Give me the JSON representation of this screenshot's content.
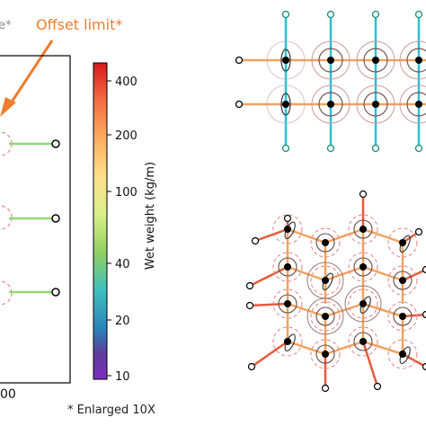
{
  "annotations": {
    "partial_label": "e*",
    "offset_limit": "Offset limit*",
    "enlarged_note": "* Enlarged 10X",
    "x_tick_partial": "00"
  },
  "colorbar": {
    "label": "Wet weight (kg/m)",
    "ticks": [
      "400",
      "200",
      "100",
      "40",
      "20",
      "10"
    ],
    "gradient": [
      "#d7191c",
      "#f46d43",
      "#fdae61",
      "#fee08b",
      "#d9ef8b",
      "#91cf60",
      "#3fbfbf",
      "#2b83ba",
      "#5e3c99",
      "#7b2fbe"
    ]
  },
  "colors": {
    "annotation_orange": "#ee7d2e",
    "offset_circle": "#e88a8a",
    "line_green": "#90d878",
    "line_cyan": "#29c1d4",
    "line_orange": "#f2a25c",
    "line_red_orange": "#e85a3a",
    "anchor_teal": "#1a8a72",
    "node_black": "#000000"
  }
}
